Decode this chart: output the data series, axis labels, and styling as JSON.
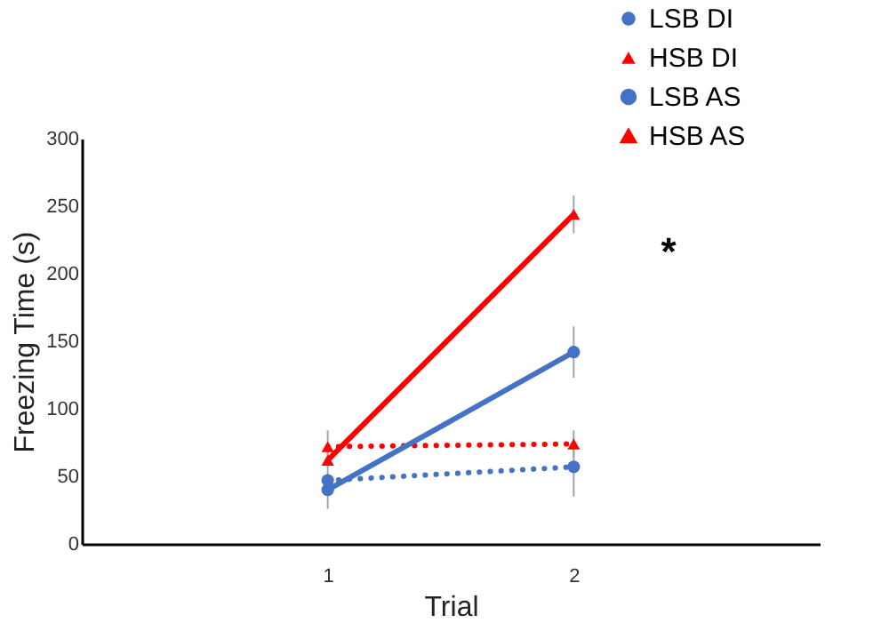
{
  "chart_data": {
    "type": "line",
    "xlabel": "Trial",
    "ylabel": "Freezing Time (s)",
    "categories": [
      "1",
      "2"
    ],
    "series": [
      {
        "name": "LSB DI",
        "color": "#4472c4",
        "values": [
          47,
          57
        ],
        "errors": [
          5,
          22
        ],
        "line_style": "dotted",
        "marker": "circle"
      },
      {
        "name": "HSB DI",
        "color": "#ff0000",
        "values": [
          72,
          74
        ],
        "errors": [
          12,
          10
        ],
        "line_style": "dotted",
        "marker": "triangle"
      },
      {
        "name": "LSB AS",
        "color": "#4472c4",
        "values": [
          40,
          142
        ],
        "errors": [
          14,
          19
        ],
        "line_style": "solid",
        "marker": "circle"
      },
      {
        "name": "HSB AS",
        "color": "#ff0000",
        "values": [
          62,
          244
        ],
        "errors": [
          8,
          14
        ],
        "line_style": "solid",
        "marker": "triangle"
      }
    ],
    "ylim": [
      0,
      300
    ],
    "yticks": [
      0,
      50,
      100,
      150,
      200,
      250,
      300
    ],
    "annotations": [
      "*"
    ],
    "grid": false,
    "legend": "top right"
  }
}
